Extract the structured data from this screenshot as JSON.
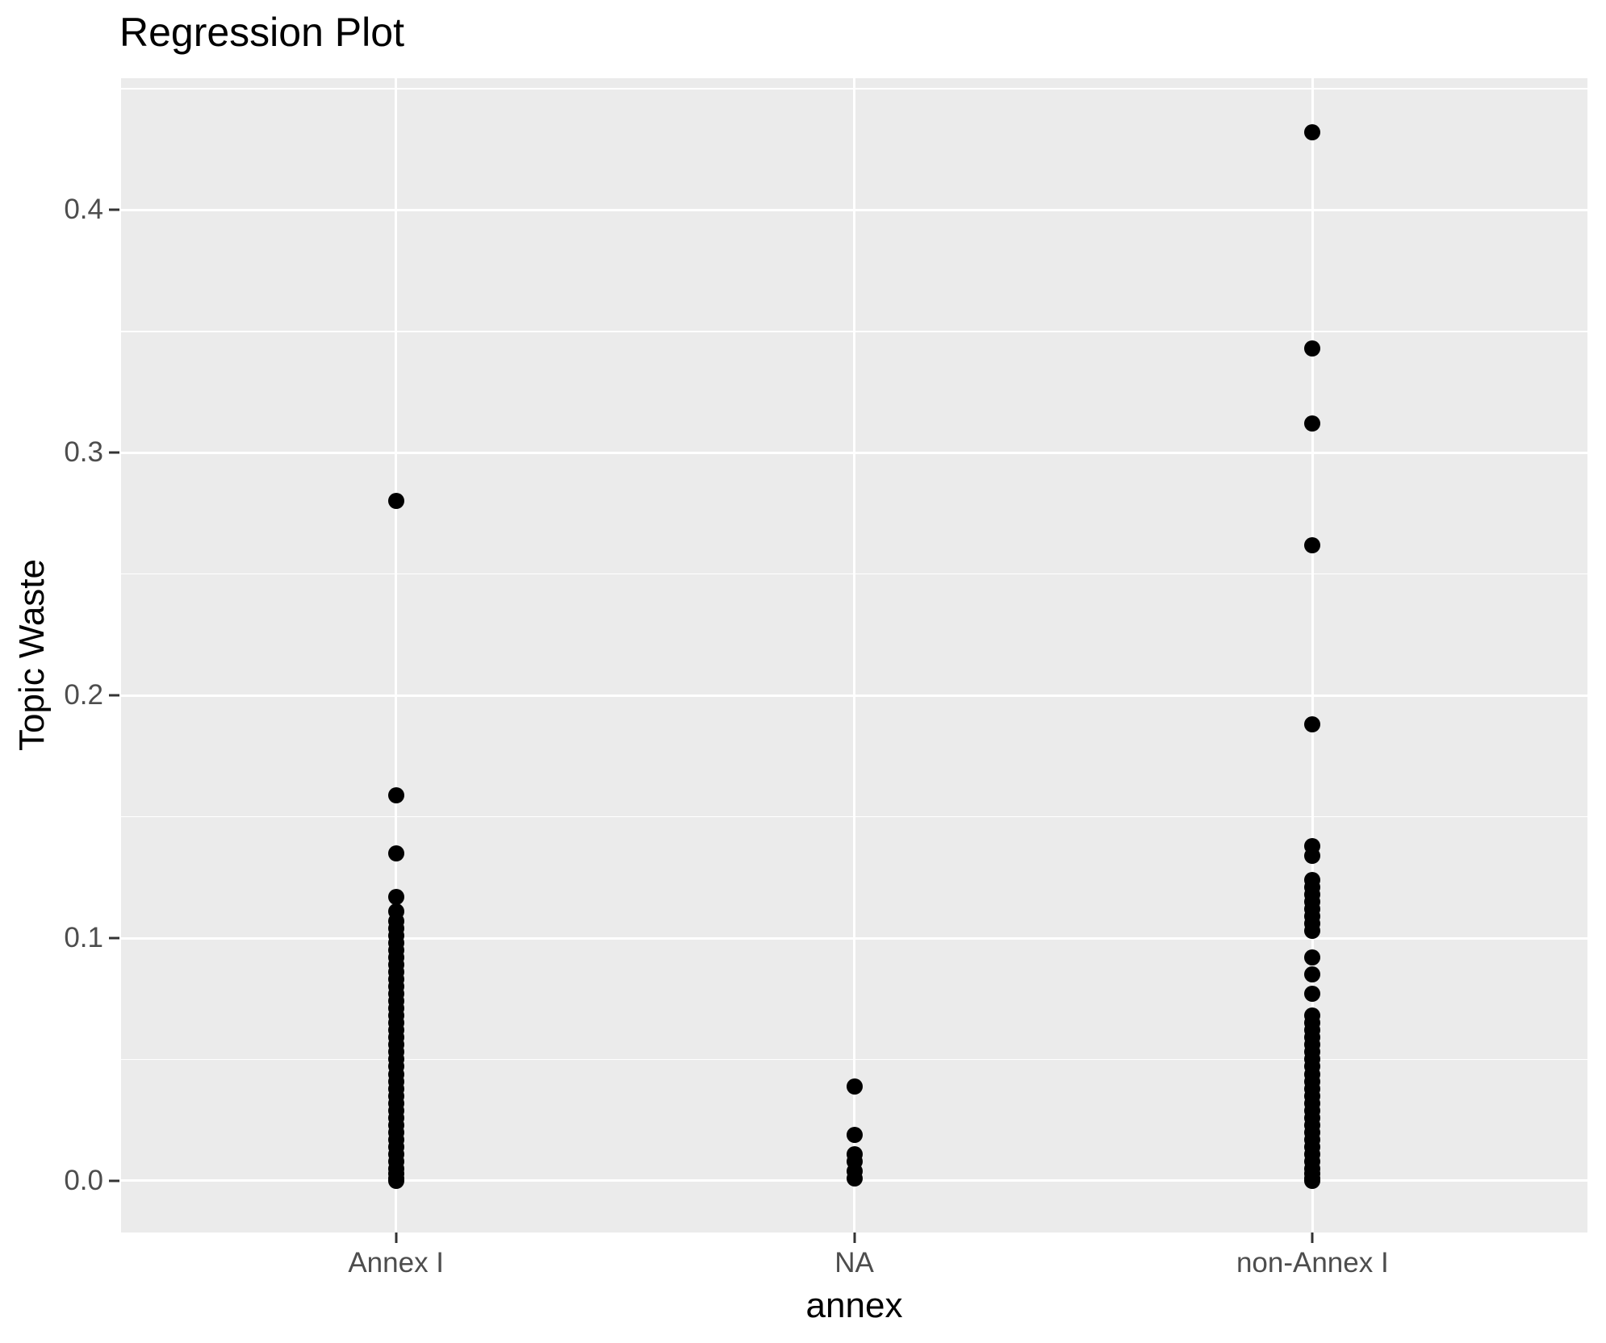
{
  "chart_data": {
    "type": "scatter",
    "title": "Regression Plot",
    "xlabel": "annex",
    "ylabel": "Topic Waste",
    "categories": [
      "Annex I",
      "NA",
      "non-Annex I"
    ],
    "x_positions": [
      1,
      2,
      3
    ],
    "xlim": [
      0.4,
      3.6
    ],
    "ylim": [
      -0.0213,
      0.4543
    ],
    "y_major_ticks": [
      0.0,
      0.1,
      0.2,
      0.3,
      0.4
    ],
    "y_tick_labels": [
      "0.0",
      "0.1",
      "0.2",
      "0.3",
      "0.4"
    ],
    "y_minor_ticks": [
      0.05,
      0.15,
      0.25,
      0.35,
      0.45
    ],
    "grid": true,
    "legend": "none",
    "panel_bg": "#EBEBEB",
    "grid_color": "#FFFFFF",
    "point_color": "#000000",
    "tick_text_color": "#4D4D4D",
    "tick_mark_color": "#333333",
    "series": [
      {
        "name": "Annex I",
        "x": 1,
        "values": [
          0.28,
          0.159,
          0.135,
          0.117,
          0.111,
          0.107,
          0.104,
          0.101,
          0.098,
          0.095,
          0.092,
          0.089,
          0.086,
          0.083,
          0.08,
          0.077,
          0.074,
          0.071,
          0.068,
          0.065,
          0.062,
          0.059,
          0.056,
          0.053,
          0.05,
          0.047,
          0.044,
          0.041,
          0.038,
          0.035,
          0.032,
          0.029,
          0.026,
          0.023,
          0.02,
          0.017,
          0.014,
          0.011,
          0.008,
          0.005,
          0.003,
          0.001,
          0.0
        ]
      },
      {
        "name": "NA",
        "x": 2,
        "values": [
          0.039,
          0.019,
          0.011,
          0.008,
          0.004,
          0.001
        ]
      },
      {
        "name": "non-Annex I",
        "x": 3,
        "values": [
          0.432,
          0.343,
          0.312,
          0.262,
          0.188,
          0.138,
          0.134,
          0.124,
          0.121,
          0.118,
          0.115,
          0.112,
          0.109,
          0.106,
          0.103,
          0.092,
          0.085,
          0.077,
          0.068,
          0.065,
          0.062,
          0.059,
          0.056,
          0.053,
          0.05,
          0.047,
          0.044,
          0.041,
          0.038,
          0.035,
          0.032,
          0.029,
          0.026,
          0.023,
          0.02,
          0.017,
          0.014,
          0.011,
          0.008,
          0.005,
          0.003,
          0.001,
          0.0
        ]
      }
    ]
  }
}
